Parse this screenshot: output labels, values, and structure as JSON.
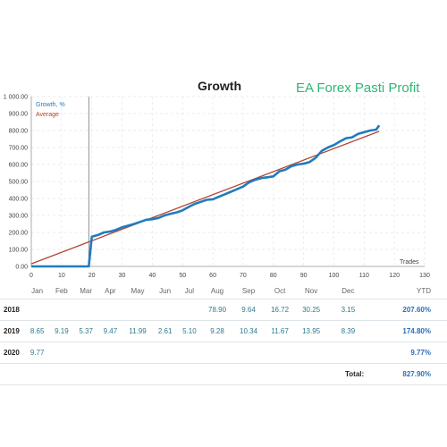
{
  "header": {
    "title": "Growth",
    "brand": "EA Forex Pasti Profit"
  },
  "chart_data": {
    "type": "line",
    "title": "Growth",
    "xlabel": "Trades",
    "ylabel": "",
    "xlim": [
      0,
      130
    ],
    "ylim": [
      0,
      1000
    ],
    "x_ticks": [
      "0",
      "10",
      "20",
      "30",
      "40",
      "50",
      "60",
      "70",
      "80",
      "90",
      "100",
      "110",
      "120",
      "130"
    ],
    "y_ticks": [
      "0.00",
      "100.00",
      "200.00",
      "300.00",
      "400.00",
      "500.00",
      "600.00",
      "700.00",
      "800.00",
      "900.00",
      "1 000.00"
    ],
    "legend_position": "top-left",
    "series": [
      {
        "name": "Growth, %",
        "color": "#1f7bbf",
        "x": [
          0,
          19,
          20,
          22,
          24,
          26,
          28,
          30,
          32,
          34,
          36,
          38,
          40,
          42,
          44,
          46,
          48,
          50,
          52,
          54,
          56,
          58,
          60,
          62,
          64,
          66,
          68,
          70,
          72,
          74,
          76,
          78,
          80,
          82,
          83,
          84,
          86,
          88,
          90,
          92,
          94,
          96,
          98,
          100,
          102,
          104,
          106,
          108,
          110,
          112,
          114,
          115
        ],
        "y": [
          0,
          0,
          175,
          185,
          200,
          205,
          215,
          230,
          240,
          250,
          262,
          275,
          278,
          285,
          300,
          310,
          318,
          330,
          350,
          368,
          380,
          392,
          395,
          410,
          425,
          440,
          455,
          470,
          495,
          510,
          520,
          525,
          530,
          560,
          565,
          570,
          590,
          600,
          605,
          615,
          640,
          680,
          700,
          715,
          735,
          755,
          760,
          780,
          790,
          800,
          805,
          830
        ]
      },
      {
        "name": "Average",
        "color": "#b2452e",
        "x": [
          0,
          115
        ],
        "y": [
          15,
          795
        ]
      }
    ],
    "vertical_marker_x": 19
  },
  "table": {
    "headers": [
      "Jan",
      "Feb",
      "Mar",
      "Apr",
      "May",
      "Jun",
      "Jul",
      "Aug",
      "Sep",
      "Oct",
      "Nov",
      "Dec",
      "YTD"
    ],
    "rows": [
      {
        "year": "2018",
        "values": [
          "",
          "",
          "",
          "",
          "",
          "",
          "",
          "78.90",
          "9.64",
          "16.72",
          "30.25",
          "3.15"
        ],
        "ytd": "207.60%"
      },
      {
        "year": "2019",
        "values": [
          "8.65",
          "9.19",
          "5.37",
          "9.47",
          "11.99",
          "2.61",
          "5.10",
          "9.28",
          "10.34",
          "11.67",
          "13.95",
          "8.39"
        ],
        "ytd": "174.80%"
      },
      {
        "year": "2020",
        "values": [
          "9.77",
          "",
          "",
          "",
          "",
          "",
          "",
          "",
          "",
          "",
          "",
          ""
        ],
        "ytd": "9.77%"
      }
    ],
    "total_label": "Total:",
    "total_value": "827.90%"
  }
}
